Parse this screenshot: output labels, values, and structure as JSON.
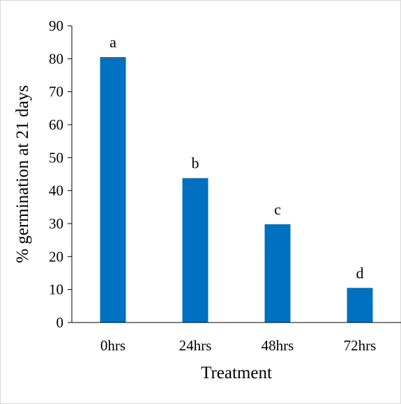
{
  "chart_data": {
    "type": "bar",
    "title": "",
    "xlabel": "Treatment",
    "ylabel": "% germination at 21 days",
    "categories": [
      "0hrs",
      "24hrs",
      "48hrs",
      "72hrs"
    ],
    "values": [
      80.5,
      43.8,
      29.8,
      10.5
    ],
    "significance_labels": [
      "a",
      "b",
      "c",
      "d"
    ],
    "ylim": [
      0,
      90
    ],
    "yticks": [
      0,
      10,
      20,
      30,
      40,
      50,
      60,
      70,
      80,
      90
    ],
    "grid": false,
    "legend": "none",
    "bar_color": "#0070c0"
  }
}
